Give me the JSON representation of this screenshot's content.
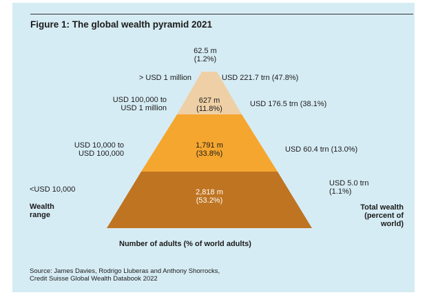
{
  "chart_data": {
    "type": "pyramid",
    "title": "Figure 1: The global wealth pyramid 2021",
    "tiers": [
      {
        "range": "> USD 1 million",
        "adults": "62.5 m",
        "adults_pct": "(1.2%)",
        "wealth": "USD 221.7 trn (47.8%)",
        "adults_m": 62.5,
        "adults_share": 1.2,
        "wealth_trn": 221.7,
        "wealth_share": 47.8,
        "color": "#1d5f7a"
      },
      {
        "range_line1": "USD 100,000 to",
        "range_line2": "USD 1 million",
        "adults": "627 m",
        "adults_pct": "(11.8%)",
        "wealth": "USD 176.5 trn (38.1%)",
        "adults_m": 627,
        "adults_share": 11.8,
        "wealth_trn": 176.5,
        "wealth_share": 38.1,
        "color": "#efd0a6"
      },
      {
        "range_line1": "USD 10,000 to",
        "range_line2": "USD 100,000",
        "adults": "1,791 m",
        "adults_pct": "(33.8%)",
        "wealth": "USD 60.4 trn (13.0%)",
        "adults_m": 1791,
        "adults_share": 33.8,
        "wealth_trn": 60.4,
        "wealth_share": 13.0,
        "color": "#f5a62f"
      },
      {
        "range": "<USD 10,000",
        "adults": "2,818 m",
        "adults_pct": "(53.2%)",
        "wealth_line1": "USD 5.0 trn",
        "wealth_line2": "(1.1%)",
        "adults_m": 2818,
        "adults_share": 53.2,
        "wealth_trn": 5.0,
        "wealth_share": 1.1,
        "color": "#bf7421"
      }
    ],
    "left_axis_line1": "Wealth",
    "left_axis_line2": "range",
    "right_axis_line1": "Total wealth",
    "right_axis_line2": "(percent of",
    "right_axis_line3": "world)",
    "xlabel": "Number of adults (% of world adults)"
  },
  "source_line1": "Source: James Davies, Rodrigo Lluberas and Anthony Shorrocks,",
  "source_line2": "Credit Suisse Global Wealth Databook 2022"
}
